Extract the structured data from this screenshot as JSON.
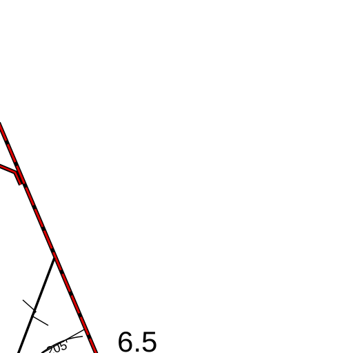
{
  "labels": {
    "dimension": "6.5",
    "distance": "205'"
  }
}
